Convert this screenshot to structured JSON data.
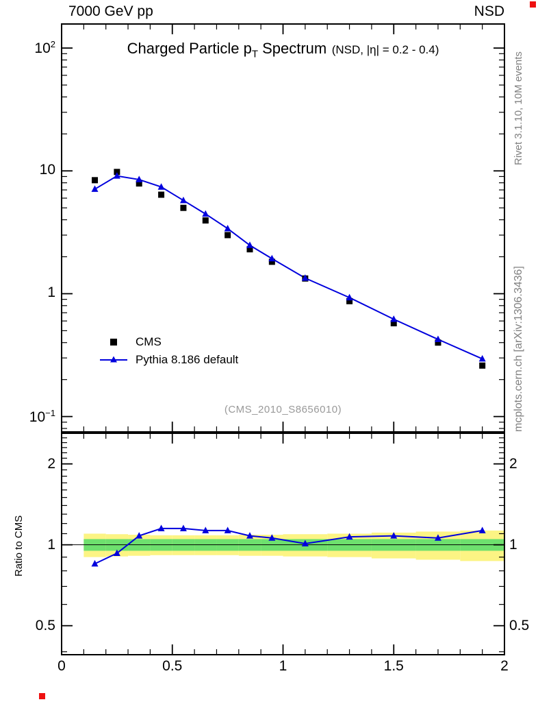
{
  "header": {
    "left": "7000 GeV pp",
    "right": "NSD"
  },
  "title": {
    "prefix": "Charged Particle p",
    "sub": "T",
    "suffix": " Spectrum",
    "note": "(NSD, |η| = 0.2 - 0.4)"
  },
  "legend": [
    {
      "label": "CMS",
      "marker": "black-square"
    },
    {
      "label": "Pythia 8.186 default",
      "marker": "blue-line-triangle"
    }
  ],
  "watermark": "(CMS_2010_S8656010)",
  "side_notes": {
    "top": "Rivet 3.1.10, 10M events",
    "bottom": "mcplots.cern.ch [arXiv:1306.3436]"
  },
  "ratio_ylabel": "Ratio to CMS",
  "colors": {
    "cms": "#000000",
    "pythia": "#0000dd",
    "band_yellow": "#fcf484",
    "band_green": "#6ee06e",
    "ref_line": "#000000",
    "watermark": "#999999",
    "side_note": "#808080",
    "fiducial": "#ee1111"
  },
  "chart_data": {
    "type": "line",
    "title": "Charged Particle pT Spectrum",
    "subtitle": "(NSD, |η| = 0.2 - 0.4)",
    "x": [
      0.15,
      0.25,
      0.35,
      0.45,
      0.55,
      0.65,
      0.75,
      0.85,
      0.95,
      1.1,
      1.3,
      1.5,
      1.7,
      1.9
    ],
    "series": [
      {
        "name": "CMS",
        "marker": "square",
        "color_key": "cms",
        "line": false,
        "values": [
          8.4,
          9.8,
          7.9,
          6.4,
          5.0,
          3.95,
          3.0,
          2.3,
          1.82,
          1.33,
          0.87,
          0.575,
          0.4,
          0.26
        ]
      },
      {
        "name": "Pythia 8.186 default",
        "marker": "triangle",
        "color_key": "pythia",
        "line": true,
        "values": [
          7.1,
          9.1,
          8.5,
          7.4,
          5.75,
          4.46,
          3.39,
          2.48,
          1.93,
          1.34,
          0.93,
          0.62,
          0.425,
          0.295
        ]
      }
    ],
    "ratio": {
      "name": "Pythia 8.186 default / CMS",
      "values": [
        0.85,
        0.93,
        1.08,
        1.15,
        1.15,
        1.13,
        1.13,
        1.08,
        1.06,
        1.01,
        1.07,
        1.08,
        1.06,
        1.13
      ]
    },
    "bands": {
      "bin_edges": [
        0.1,
        0.2,
        0.3,
        0.4,
        0.5,
        0.6,
        0.7,
        0.8,
        0.9,
        1.0,
        1.2,
        1.4,
        1.6,
        1.8,
        2.0
      ],
      "yellow_lo": [
        0.9,
        0.905,
        0.91,
        0.915,
        0.915,
        0.915,
        0.915,
        0.91,
        0.91,
        0.905,
        0.9,
        0.89,
        0.88,
        0.87
      ],
      "yellow_hi": [
        1.1,
        1.095,
        1.09,
        1.085,
        1.085,
        1.085,
        1.085,
        1.09,
        1.09,
        1.095,
        1.1,
        1.11,
        1.12,
        1.13
      ],
      "green_lo": [
        0.95,
        0.95,
        0.95,
        0.95,
        0.95,
        0.95,
        0.95,
        0.95,
        0.95,
        0.95,
        0.95,
        0.95,
        0.95,
        0.95
      ],
      "green_hi": [
        1.05,
        1.05,
        1.05,
        1.05,
        1.05,
        1.05,
        1.05,
        1.05,
        1.05,
        1.05,
        1.05,
        1.05,
        1.05,
        1.05
      ]
    },
    "axes": {
      "x": {
        "range": [
          0,
          2
        ],
        "major": [
          0,
          0.5,
          1,
          1.5,
          2
        ],
        "labels": [
          "0",
          "0.5",
          "1",
          "1.5",
          "2"
        ],
        "minor_step": 0.1
      },
      "y_main": {
        "scale": "log",
        "range": [
          0.075,
          157
        ],
        "majors": [
          {
            "v": 100,
            "base": "10",
            "exp": "2"
          },
          {
            "v": 10,
            "base": "10",
            "exp": ""
          },
          {
            "v": 1,
            "base": "1",
            "exp": ""
          },
          {
            "v": 0.1,
            "base": "10",
            "exp": "−1"
          }
        ]
      },
      "y_ratio": {
        "scale": "log",
        "range": [
          0.39,
          2.6
        ],
        "majors": [
          {
            "v": 2,
            "label": "2"
          },
          {
            "v": 1,
            "label": "1"
          },
          {
            "v": 0.5,
            "label": "0.5"
          }
        ],
        "minors": [
          0.4,
          0.6,
          0.7,
          0.8,
          0.9,
          1.1,
          1.2,
          1.3,
          1.4,
          1.5,
          1.6,
          1.7,
          1.8,
          1.9,
          2.1,
          2.2,
          2.3,
          2.4,
          2.5
        ]
      }
    }
  }
}
